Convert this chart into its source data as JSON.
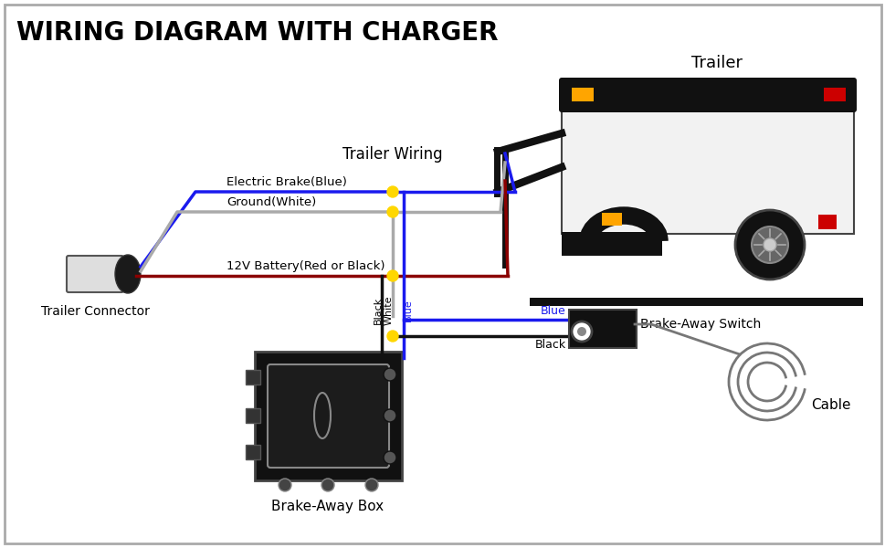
{
  "title": "WIRING DIAGRAM WITH CHARGER",
  "bg_color": "#ffffff",
  "labels": {
    "trailer": "Trailer",
    "trailer_wiring": "Trailer Wiring",
    "electric_brake": "Electric Brake(Blue)",
    "ground_white": "Ground(White)",
    "battery_red": "12V Battery(Red or Black)",
    "trailer_connector": "Trailer Connector",
    "blue_label": "Blue",
    "black_label": "Black",
    "white_label": "White",
    "black_vertical": "Black",
    "blue_vertical": "Blue",
    "brake_away_switch": "Brake-Away Switch",
    "brake_away_box": "Brake-Away Box",
    "cable": "Cable"
  },
  "colors": {
    "blue": "#1a1aee",
    "white_wire": "#aaaaaa",
    "dark_red": "#8B0000",
    "black": "#111111",
    "dot": "#FFD700",
    "trailer_body": "#f2f2f2",
    "trailer_roof": "#111111",
    "wheel": "#111111",
    "dark": "#111111",
    "medium": "#444444",
    "orange": "#FFA500",
    "red_light": "#cc0000",
    "ground_line": "#111111"
  }
}
